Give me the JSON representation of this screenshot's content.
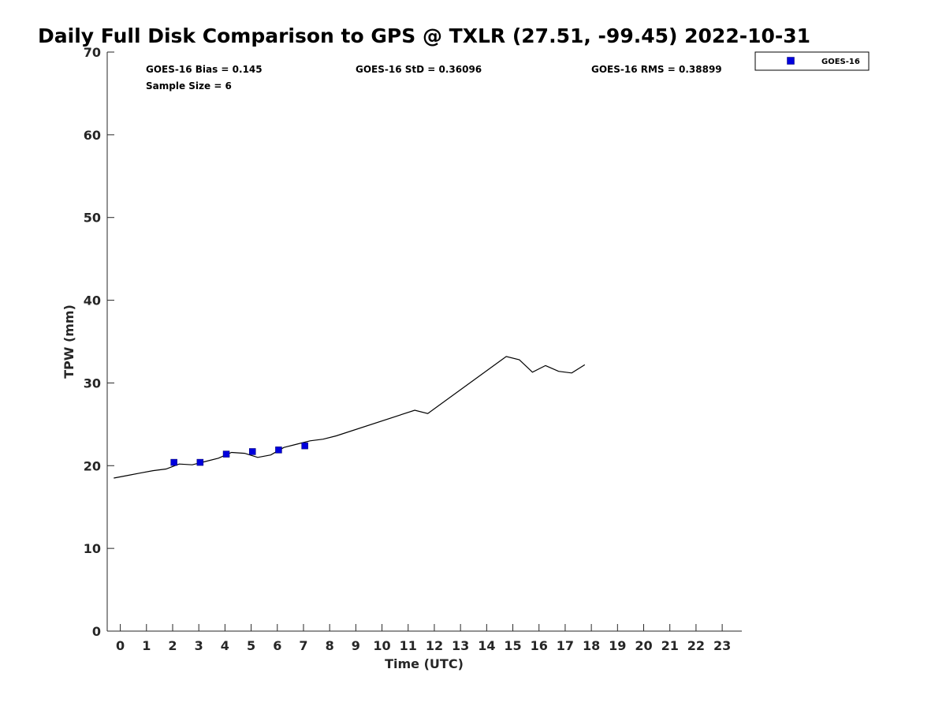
{
  "chart_data": {
    "type": "scatter",
    "title": "Daily Full Disk Comparison to GPS @ TXLR (27.51, -99.45) 2022-10-31",
    "xlabel": "Time (UTC)",
    "ylabel": "TPW (mm)",
    "xlim": [
      -0.5,
      23.75
    ],
    "ylim": [
      0,
      70
    ],
    "x_ticks": [
      0,
      1,
      2,
      3,
      4,
      5,
      6,
      7,
      8,
      9,
      10,
      11,
      12,
      13,
      14,
      15,
      16,
      17,
      18,
      19,
      20,
      21,
      22,
      23
    ],
    "y_ticks": [
      0,
      10,
      20,
      30,
      40,
      50,
      60,
      70
    ],
    "grid": false,
    "legend_position": "top-right-outside",
    "stats": {
      "bias": "GOES-16 Bias = 0.145",
      "std": "GOES-16 StD = 0.36096",
      "rms": "GOES-16 RMS = 0.38899",
      "sample_size": "Sample Size = 6"
    },
    "series": [
      {
        "name": "GOES-16",
        "kind": "markers",
        "marker": "square",
        "color": "#0000dd",
        "x": [
          2.05,
          3.05,
          4.05,
          5.05,
          6.05,
          7.05
        ],
        "y": [
          20.4,
          20.4,
          21.4,
          21.7,
          21.9,
          22.4
        ]
      },
      {
        "kind": "line",
        "color": "#000000",
        "x": [
          -0.25,
          0.25,
          0.75,
          1.25,
          1.75,
          2.25,
          2.75,
          3.25,
          3.75,
          4.25,
          4.75,
          5.25,
          5.75,
          6.25,
          6.75,
          7.25,
          7.75,
          8.25,
          11.25,
          11.75,
          14.75,
          15.25,
          15.75,
          16.25,
          16.75,
          17.25,
          17.75
        ],
        "y": [
          18.5,
          18.8,
          19.1,
          19.4,
          19.6,
          20.2,
          20.1,
          20.5,
          20.9,
          21.6,
          21.5,
          21.0,
          21.3,
          22.2,
          22.6,
          23.0,
          23.2,
          23.6,
          26.7,
          26.3,
          33.2,
          32.8,
          31.3,
          32.1,
          31.4,
          31.2,
          32.2
        ]
      }
    ]
  }
}
